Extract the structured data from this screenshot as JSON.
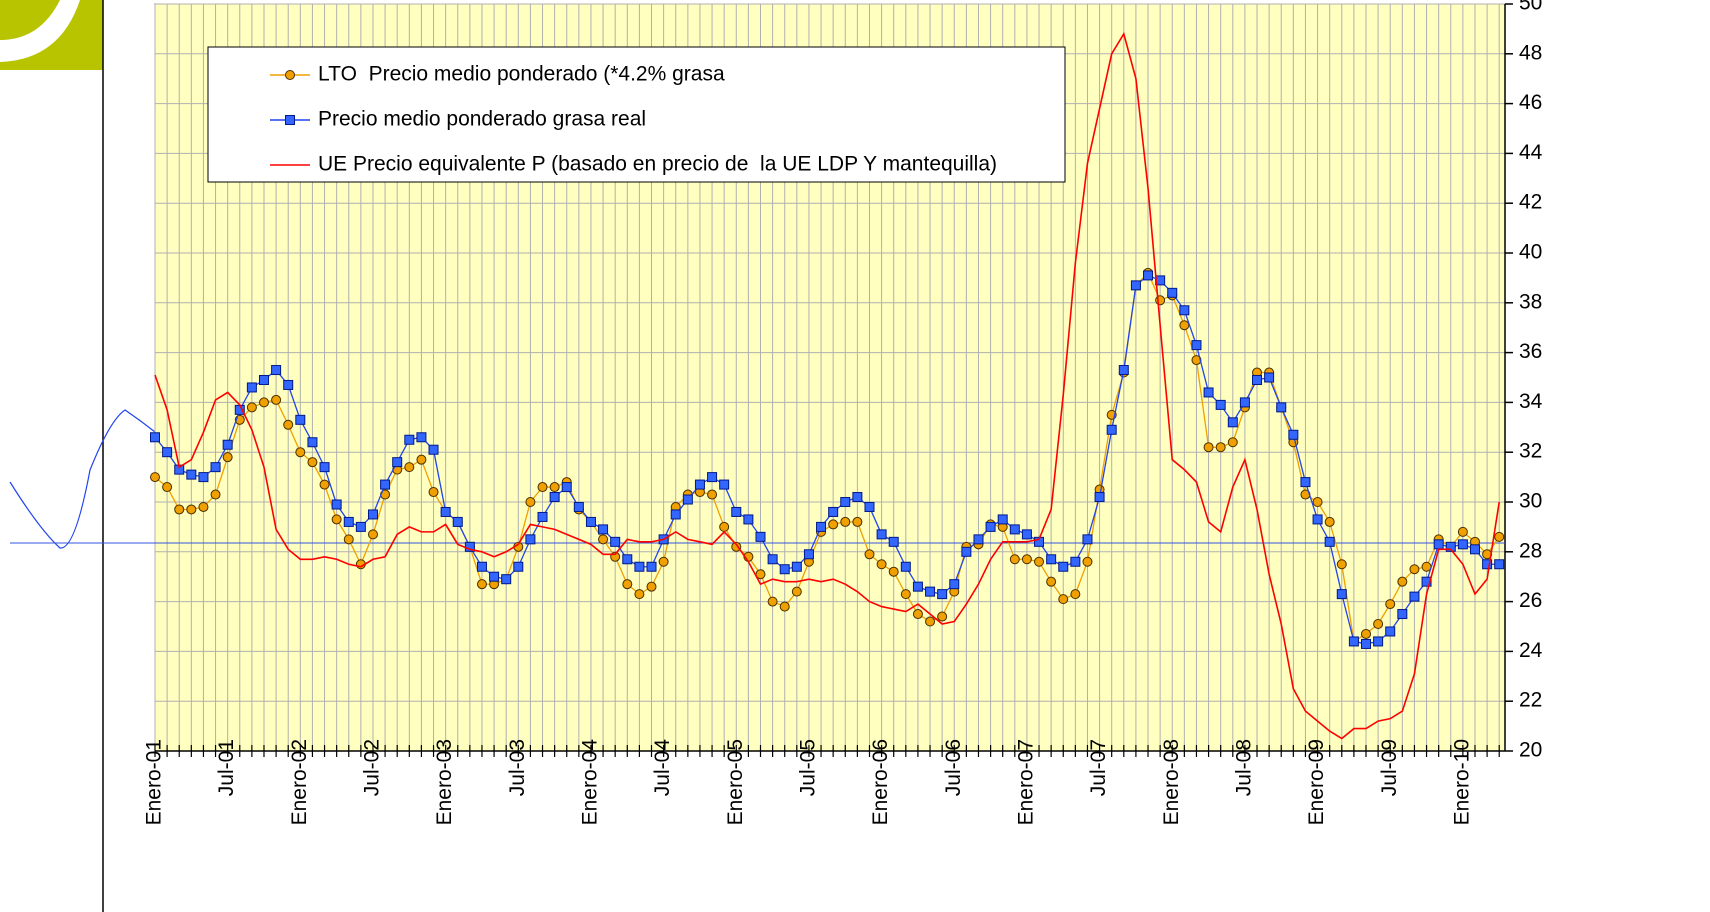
{
  "chart_data": {
    "type": "line",
    "categories": [
      "Enero-01",
      null,
      null,
      null,
      null,
      null,
      "Jul-01",
      null,
      null,
      null,
      null,
      null,
      "Enero-02",
      null,
      null,
      null,
      null,
      null,
      "Jul-02",
      null,
      null,
      null,
      null,
      null,
      "Enero-03",
      null,
      null,
      null,
      null,
      null,
      "Jul-03",
      null,
      null,
      null,
      null,
      null,
      "Enero-04",
      null,
      null,
      null,
      null,
      null,
      "Jul-04",
      null,
      null,
      null,
      null,
      null,
      "Enero-05",
      null,
      null,
      null,
      null,
      null,
      "Jul-05",
      null,
      null,
      null,
      null,
      null,
      "Enero-06",
      null,
      null,
      null,
      null,
      null,
      "Jul-06",
      null,
      null,
      null,
      null,
      null,
      "Enero-07",
      null,
      null,
      null,
      null,
      null,
      "Jul-07",
      null,
      null,
      null,
      null,
      null,
      "Enero-08",
      null,
      null,
      null,
      null,
      null,
      "Jul-08",
      null,
      null,
      null,
      null,
      null,
      "Enero-09",
      null,
      null,
      null,
      null,
      null,
      "Jul-09",
      null,
      null,
      null,
      null,
      null,
      "Enero-10",
      null,
      null,
      null
    ],
    "series": [
      {
        "name": "LTO  Precio medio ponderado (*4.2% grasa",
        "color": "#f0a000",
        "marker": "circle",
        "values": [
          31.0,
          30.6,
          29.7,
          29.7,
          29.8,
          30.3,
          31.8,
          33.3,
          33.8,
          34.0,
          34.1,
          33.1,
          32.0,
          31.6,
          30.7,
          29.3,
          28.5,
          27.5,
          28.7,
          30.3,
          31.3,
          31.4,
          31.7,
          30.4,
          29.6,
          29.2,
          28.2,
          26.7,
          26.7,
          26.9,
          28.2,
          30.0,
          30.6,
          30.6,
          30.8,
          29.7,
          29.2,
          28.5,
          27.8,
          26.7,
          26.3,
          26.6,
          27.6,
          29.8,
          30.3,
          30.4,
          30.3,
          29.0,
          28.2,
          27.8,
          27.1,
          26.0,
          25.8,
          26.4,
          27.6,
          28.8,
          29.1,
          29.2,
          29.2,
          27.9,
          27.5,
          27.2,
          26.3,
          25.5,
          25.2,
          25.4,
          26.4,
          28.2,
          28.3,
          29.1,
          29.0,
          27.7,
          27.7,
          27.6,
          26.8,
          26.1,
          26.3,
          27.6,
          30.5,
          33.5,
          35.2,
          38.7,
          39.2,
          38.1,
          38.3,
          37.1,
          35.7,
          32.2,
          32.2,
          32.4,
          33.8,
          35.2,
          35.2,
          33.8,
          32.4,
          30.3,
          30.0,
          29.2,
          27.5,
          24.4,
          24.7,
          25.1,
          25.9,
          26.8,
          27.3,
          27.4,
          28.5,
          28.2,
          28.8,
          28.4,
          27.9,
          28.6
        ]
      },
      {
        "name": "Precio medio ponderado grasa real",
        "color": "#2244ee",
        "marker": "square",
        "values": [
          32.6,
          32.0,
          31.3,
          31.1,
          31.0,
          31.4,
          32.3,
          33.7,
          34.6,
          34.9,
          35.3,
          34.7,
          33.3,
          32.4,
          31.4,
          29.9,
          29.2,
          29.0,
          29.5,
          30.7,
          31.6,
          32.5,
          32.6,
          32.1,
          29.6,
          29.2,
          28.2,
          27.4,
          27.0,
          26.9,
          27.4,
          28.5,
          29.4,
          30.2,
          30.6,
          29.8,
          29.2,
          28.9,
          28.4,
          27.7,
          27.4,
          27.4,
          28.5,
          29.5,
          30.1,
          30.7,
          31.0,
          30.7,
          29.6,
          29.3,
          28.6,
          27.7,
          27.3,
          27.4,
          27.9,
          29.0,
          29.6,
          30.0,
          30.2,
          29.8,
          28.7,
          28.4,
          27.4,
          26.6,
          26.4,
          26.3,
          26.7,
          28.0,
          28.5,
          29.0,
          29.3,
          28.9,
          28.7,
          28.4,
          27.7,
          27.4,
          27.6,
          28.5,
          30.2,
          32.9,
          35.3,
          38.7,
          39.1,
          38.9,
          38.4,
          37.7,
          36.3,
          34.4,
          33.9,
          33.2,
          34.0,
          34.9,
          35.0,
          33.8,
          32.7,
          30.8,
          29.3,
          28.4,
          26.3,
          24.4,
          24.3,
          24.4,
          24.8,
          25.5,
          26.2,
          26.8,
          28.3,
          28.2,
          28.3,
          28.1,
          27.5,
          27.5
        ]
      },
      {
        "name": "UE Precio equivalente P (basado en precio de  la UE LDP Y mantequilla)",
        "color": "#ff0000",
        "marker": "none",
        "values": [
          35.1,
          33.7,
          31.4,
          31.7,
          32.8,
          34.1,
          34.4,
          33.9,
          32.9,
          31.4,
          28.9,
          28.1,
          27.7,
          27.7,
          27.8,
          27.7,
          27.5,
          27.4,
          27.7,
          27.8,
          28.7,
          29.0,
          28.8,
          28.8,
          29.1,
          28.3,
          28.1,
          28.0,
          27.8,
          28.0,
          28.3,
          29.1,
          29.0,
          28.9,
          28.7,
          28.5,
          28.3,
          27.9,
          27.9,
          28.5,
          28.4,
          28.4,
          28.5,
          28.8,
          28.5,
          28.4,
          28.3,
          28.8,
          28.3,
          27.6,
          26.7,
          26.9,
          26.8,
          26.8,
          26.9,
          26.8,
          26.9,
          26.7,
          26.4,
          26.0,
          25.8,
          25.7,
          25.6,
          25.9,
          25.5,
          25.1,
          25.2,
          25.9,
          26.7,
          27.7,
          28.4,
          28.4,
          28.4,
          28.5,
          29.7,
          34.3,
          39.6,
          43.6,
          45.8,
          48.0,
          48.8,
          47.0,
          42.6,
          37.1,
          31.7,
          31.3,
          30.8,
          29.2,
          28.8,
          30.6,
          31.7,
          29.7,
          27.1,
          25.1,
          22.5,
          21.6,
          21.2,
          20.8,
          20.5,
          20.9,
          20.9,
          21.2,
          21.3,
          21.6,
          23.1,
          26.3,
          28.1,
          28.1,
          27.5,
          26.3,
          26.9,
          30.0
        ]
      }
    ],
    "ylim": [
      20,
      50
    ],
    "yticks": [
      20,
      22,
      24,
      26,
      28,
      30,
      32,
      34,
      36,
      38,
      40,
      42,
      44,
      46,
      48,
      50
    ],
    "y_axis_side": "right",
    "grid": true,
    "legend": "top-left",
    "background": "#ffffc0"
  }
}
